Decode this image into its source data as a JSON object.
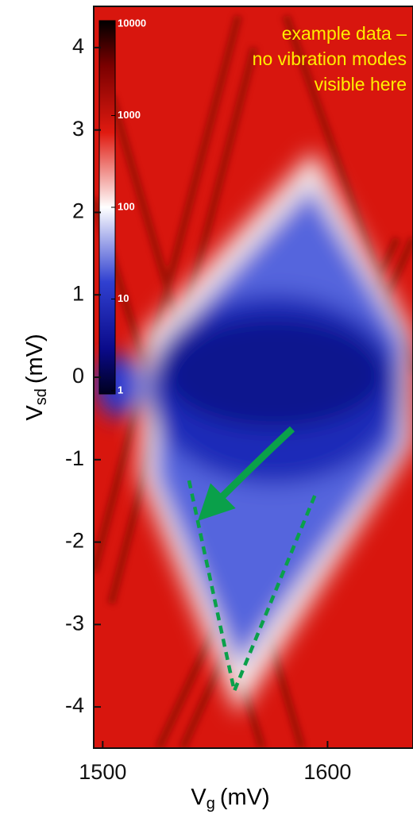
{
  "chart_data": {
    "type": "heatmap",
    "x_label": {
      "main": "V",
      "sub": "g",
      "unit": "(mV)"
    },
    "y_label": {
      "main": "V",
      "sub": "sd",
      "unit": "(mV)"
    },
    "xlim": [
      1496,
      1638
    ],
    "xticks": [
      1500,
      1600
    ],
    "ylim": [
      -4.5,
      4.5
    ],
    "yticks": [
      -4,
      -3,
      -2,
      -1,
      0,
      1,
      2,
      3,
      4
    ],
    "colorbar": {
      "scale": "log",
      "lim": [
        1,
        10000
      ],
      "ticks": [
        1,
        10,
        100,
        1000,
        10000
      ]
    },
    "annotation": [
      "example data –",
      "no vibration modes",
      "visible here"
    ]
  }
}
